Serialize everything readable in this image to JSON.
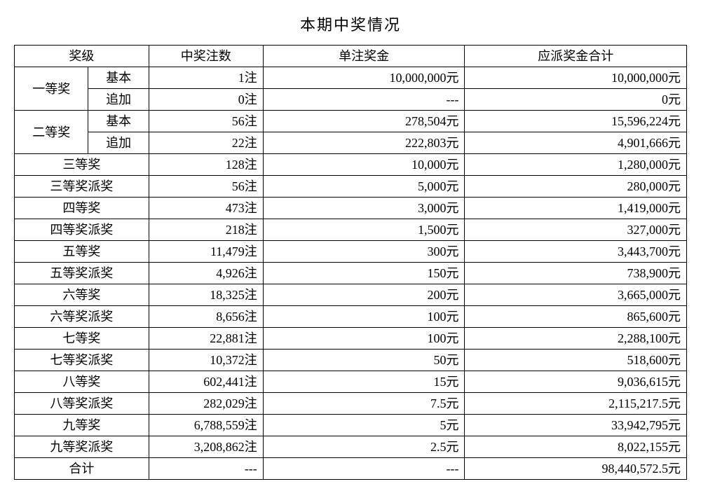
{
  "title": "本期中奖情况",
  "headers": {
    "level": "奖级",
    "count": "中奖注数",
    "unit": "单注奖金",
    "total": "应派奖金合计"
  },
  "group1": {
    "name": "一等奖",
    "base": {
      "sub": "基本",
      "count": "1注",
      "unit": "10,000,000元",
      "total": "10,000,000元"
    },
    "extra": {
      "sub": "追加",
      "count": "0注",
      "unit": "---",
      "total": "0元"
    }
  },
  "group2": {
    "name": "二等奖",
    "base": {
      "sub": "基本",
      "count": "56注",
      "unit": "278,504元",
      "total": "15,596,224元"
    },
    "extra": {
      "sub": "追加",
      "count": "22注",
      "unit": "222,803元",
      "total": "4,901,666元"
    }
  },
  "rows": {
    "r3": {
      "level": "三等奖",
      "count": "128注",
      "unit": "10,000元",
      "total": "1,280,000元"
    },
    "r3p": {
      "level": "三等奖派奖",
      "count": "56注",
      "unit": "5,000元",
      "total": "280,000元"
    },
    "r4": {
      "level": "四等奖",
      "count": "473注",
      "unit": "3,000元",
      "total": "1,419,000元"
    },
    "r4p": {
      "level": "四等奖派奖",
      "count": "218注",
      "unit": "1,500元",
      "total": "327,000元"
    },
    "r5": {
      "level": "五等奖",
      "count": "11,479注",
      "unit": "300元",
      "total": "3,443,700元"
    },
    "r5p": {
      "level": "五等奖派奖",
      "count": "4,926注",
      "unit": "150元",
      "total": "738,900元"
    },
    "r6": {
      "level": "六等奖",
      "count": "18,325注",
      "unit": "200元",
      "total": "3,665,000元"
    },
    "r6p": {
      "level": "六等奖派奖",
      "count": "8,656注",
      "unit": "100元",
      "total": "865,600元"
    },
    "r7": {
      "level": "七等奖",
      "count": "22,881注",
      "unit": "100元",
      "total": "2,288,100元"
    },
    "r7p": {
      "level": "七等奖派奖",
      "count": "10,372注",
      "unit": "50元",
      "total": "518,600元"
    },
    "r8": {
      "level": "八等奖",
      "count": "602,441注",
      "unit": "15元",
      "total": "9,036,615元"
    },
    "r8p": {
      "level": "八等奖派奖",
      "count": "282,029注",
      "unit": "7.5元",
      "total": "2,115,217.5元"
    },
    "r9": {
      "level": "九等奖",
      "count": "6,788,559注",
      "unit": "5元",
      "total": "33,942,795元"
    },
    "r9p": {
      "level": "九等奖派奖",
      "count": "3,208,862注",
      "unit": "2.5元",
      "total": "8,022,155元"
    }
  },
  "sum": {
    "level": "合计",
    "count": "---",
    "unit": "---",
    "total": "98,440,572.5元"
  }
}
